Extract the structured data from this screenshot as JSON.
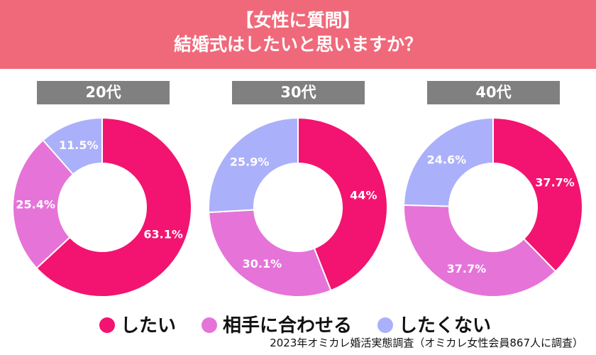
{
  "header": {
    "line1": "【女性に質問】",
    "line2": "結婚式はしたいと思いますか？"
  },
  "chart_data": [
    {
      "type": "pie",
      "donut": true,
      "title": "20代",
      "categories": [
        "したい",
        "相手に合わせる",
        "したくない"
      ],
      "values": [
        63.1,
        25.4,
        11.5
      ],
      "labels": [
        "63.1%",
        "25.4%",
        "11.5%"
      ]
    },
    {
      "type": "pie",
      "donut": true,
      "title": "30代",
      "categories": [
        "したい",
        "相手に合わせる",
        "したくない"
      ],
      "values": [
        44,
        30.1,
        25.9
      ],
      "labels": [
        "44%",
        "30.1%",
        "25.9%"
      ]
    },
    {
      "type": "pie",
      "donut": true,
      "title": "40代",
      "categories": [
        "したい",
        "相手に合わせる",
        "したくない"
      ],
      "values": [
        37.7,
        37.7,
        24.6
      ],
      "labels": [
        "37.7%",
        "37.7%",
        "24.6%"
      ]
    }
  ],
  "colors": [
    "#F21470",
    "#E673D8",
    "#ABB0FA"
  ],
  "legend": [
    "したい",
    "相手に合わせる",
    "したくない"
  ],
  "source": "2023年オミカレ婚活実態調査（オミカレ女性会員867人に調査）"
}
